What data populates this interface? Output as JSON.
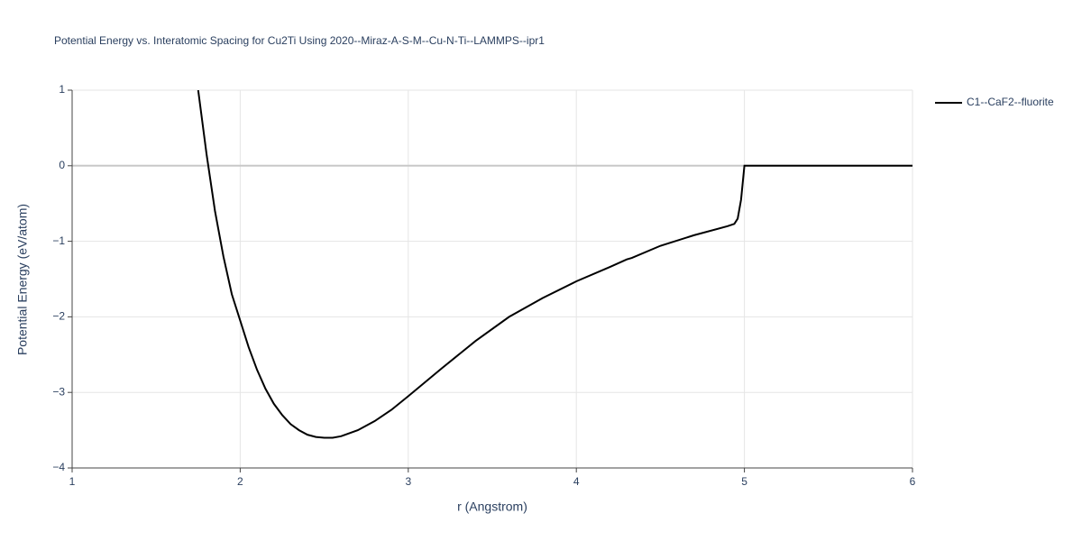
{
  "chart_data": {
    "type": "line",
    "title": "Potential Energy vs. Interatomic Spacing for Cu2Ti Using 2020--Miraz-A-S-M--Cu-N-Ti--LAMMPS--ipr1",
    "x_label": "r (Angstrom)",
    "y_label": "Potential Energy (eV/atom)",
    "xlim": [
      1,
      6
    ],
    "ylim": [
      -4,
      1
    ],
    "xticks": [
      1,
      2,
      3,
      4,
      5,
      6
    ],
    "yticks": [
      {
        "value": -4,
        "label": "−4"
      },
      {
        "value": -3,
        "label": "−3"
      },
      {
        "value": -2,
        "label": "−2"
      },
      {
        "value": -1,
        "label": "−1"
      },
      0,
      1
    ],
    "grid": true,
    "legend": "right",
    "series": [
      {
        "name": "C1--CaF2--fluorite",
        "color": "#000000",
        "x": [
          1.75,
          1.8,
          1.85,
          1.9,
          1.95,
          2.0,
          2.05,
          2.1,
          2.15,
          2.2,
          2.25,
          2.3,
          2.35,
          2.4,
          2.45,
          2.5,
          2.55,
          2.6,
          2.7,
          2.8,
          2.9,
          3.0,
          3.2,
          3.4,
          3.6,
          3.8,
          4.0,
          4.2,
          4.3,
          4.33,
          4.5,
          4.7,
          4.9,
          4.94,
          4.96,
          4.98,
          5.0,
          6.0
        ],
        "values": [
          1.0,
          0.15,
          -0.6,
          -1.2,
          -1.7,
          -2.05,
          -2.4,
          -2.7,
          -2.95,
          -3.15,
          -3.3,
          -3.42,
          -3.5,
          -3.56,
          -3.59,
          -3.6,
          -3.6,
          -3.58,
          -3.5,
          -3.38,
          -3.23,
          -3.05,
          -2.68,
          -2.32,
          -2.0,
          -1.75,
          -1.53,
          -1.34,
          -1.24,
          -1.22,
          -1.06,
          -0.92,
          -0.8,
          -0.77,
          -0.7,
          -0.45,
          0,
          0
        ]
      }
    ]
  }
}
